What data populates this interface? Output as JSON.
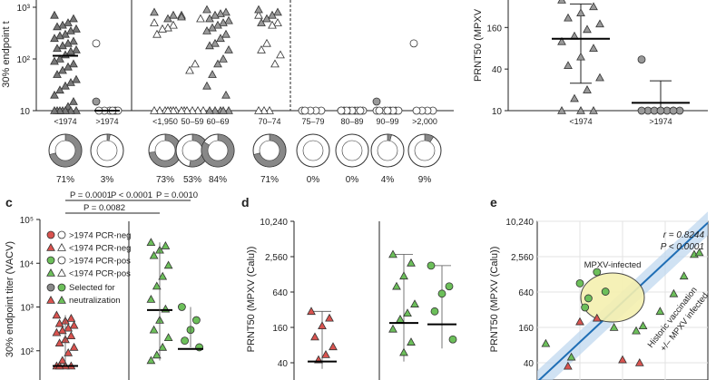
{
  "panel_labels": {
    "c": "c",
    "d": "d",
    "e": "e"
  },
  "chart_data": [
    {
      "id": "a-top",
      "type": "scatter",
      "ylabel": "30% endpoint t",
      "yscale": "log",
      "ylim": [
        10,
        1000
      ],
      "yticks": [
        "10",
        "10²",
        "10³"
      ],
      "categories": [
        "<1974",
        ">1974",
        "<1,950",
        "50–59",
        "60–69",
        "70–74",
        "75–79",
        "80–89",
        "90–99",
        ">2,000"
      ],
      "medians": [
        115,
        10,
        null,
        null,
        null,
        null,
        null,
        null,
        null,
        null
      ],
      "series": [
        {
          "marker": "triangle-filled",
          "values": [
            [
              700,
              600,
              500,
              450,
              420,
              380,
              350,
              300,
              280,
              250,
              220,
              200,
              180,
              160,
              150,
              140,
              120,
              100,
              90,
              80,
              70,
              60,
              50,
              40,
              35,
              30,
              25,
              20,
              15,
              12,
              10,
              10,
              10,
              10,
              10,
              10,
              10
            ],
            [],
            [],
            [],
            [],
            [],
            [],
            [],
            [],
            []
          ]
        },
        {
          "marker": "circle-open",
          "values": [
            [],
            [
              200,
              10,
              10,
              10,
              10,
              10,
              10
            ],
            [],
            [],
            [],
            [],
            [
              10,
              10,
              10,
              10,
              10
            ],
            [
              10,
              10,
              10,
              10,
              10,
              10,
              10,
              10,
              10,
              10,
              10
            ],
            [
              10,
              10,
              10,
              10,
              10,
              10,
              10,
              10
            ],
            [
              200,
              10,
              10,
              10,
              10
            ]
          ]
        },
        {
          "marker": "triangle-open",
          "values": [
            [],
            [],
            [
              500,
              450,
              400,
              380,
              300,
              10,
              10,
              10,
              10,
              10,
              10,
              10
            ],
            [
              700,
              600,
              80,
              60,
              10,
              10,
              10,
              10,
              10,
              10
            ],
            [],
            [
              700,
              500,
              450,
              200,
              150,
              120,
              80,
              10,
              10,
              10
            ],
            [],
            [],
            [],
            []
          ]
        },
        {
          "marker": "triangle-grey",
          "values": [
            [],
            [],
            [
              800,
              700,
              600
            ],
            [
              650
            ],
            [
              900,
              800,
              750,
              700,
              600,
              550,
              500,
              450,
              400,
              350,
              300,
              250,
              200,
              180,
              150,
              100,
              80,
              50,
              30,
              20,
              10,
              10,
              10,
              10,
              10
            ],
            [
              900,
              800,
              700,
              600,
              500
            ],
            [],
            [],
            [],
            []
          ]
        },
        {
          "marker": "circle-grey",
          "values": [
            [],
            [
              15
            ],
            [],
            [],
            [],
            [],
            [],
            [],
            [
              15
            ],
            []
          ]
        }
      ],
      "pies": [
        {
          "label": "71%",
          "value": 71
        },
        {
          "label": "3%",
          "value": 3
        },
        {
          "label": "73%",
          "value": 73
        },
        {
          "label": "53%",
          "value": 53
        },
        {
          "label": "84%",
          "value": 84
        },
        {
          "label": "71%",
          "value": 71
        },
        {
          "label": "0%",
          "value": 0
        },
        {
          "label": "0%",
          "value": 0
        },
        {
          "label": "4%",
          "value": 4
        },
        {
          "label": "9%",
          "value": 9
        }
      ]
    },
    {
      "id": "b-top",
      "type": "scatter",
      "ylabel": "PRNT50 (MPXV",
      "yscale": "log2",
      "ylim": [
        10,
        400
      ],
      "yticks": [
        "10",
        "40",
        "160"
      ],
      "categories": [
        "<1974",
        ">1974"
      ],
      "medians": [
        110,
        13
      ],
      "errorbars": [
        [
          25,
          350
        ],
        [
          10,
          27
        ]
      ],
      "series": [
        {
          "marker": "triangle-grey",
          "values": [
            [
              400,
              320,
              260,
              220,
              180,
              150,
              120,
              100,
              80,
              60,
              45,
              30,
              20,
              15,
              10,
              10,
              10
            ],
            []
          ]
        },
        {
          "marker": "circle-grey",
          "values": [
            [],
            [
              55,
              10,
              10,
              10,
              10,
              10,
              10,
              10,
              10,
              10
            ]
          ]
        }
      ]
    },
    {
      "id": "c",
      "type": "scatter",
      "ylabel": "30% endpoint titer (VACV)",
      "yscale": "log",
      "ylim": [
        30,
        100000
      ],
      "yticks": [
        "10²",
        "10³",
        "10⁴",
        "10⁵"
      ],
      "annotations": [
        "P = 0.0001",
        "P < 0.0001",
        "P = 0.0010",
        "P = 0.0082"
      ],
      "legend": [
        ">1974 PCR-neg",
        "<1974 PCR-neg",
        ">1974 PCR-pos",
        "<1974 PCR-pos",
        "Selected for",
        "neutralization"
      ],
      "groups": [
        {
          "name": "<1974 PCR-neg",
          "color": "#d9534f",
          "median": 45,
          "values": [
            650,
            550,
            480,
            420,
            380,
            330,
            290,
            260,
            220,
            180,
            150,
            120,
            90,
            60,
            45,
            45,
            45,
            45
          ]
        },
        {
          "name": "<1974 PCR-pos",
          "color": "#6cbf5a",
          "median": 850,
          "values": [
            30000,
            25000,
            20000,
            15000,
            9000,
            5000,
            3000,
            1500,
            900,
            500,
            300,
            200,
            120,
            80,
            60
          ]
        },
        {
          "name": ">1974 PCR-pos",
          "color": "#6cbf5a",
          "median": 110,
          "values": [
            1000,
            500,
            300,
            170,
            120
          ]
        }
      ]
    },
    {
      "id": "d",
      "type": "scatter",
      "ylabel": "PRNT50 (MPXV (Calu))",
      "yscale": "log2",
      "ylim": [
        30,
        10240
      ],
      "yticks": [
        "40",
        "160",
        "640",
        "2,560",
        "10,240"
      ],
      "groups": [
        {
          "name": "<1974 PCR-neg",
          "color": "#d9534f",
          "median": 42,
          "values": [
            300,
            230,
            170,
            110,
            75,
            55,
            45
          ]
        },
        {
          "name": "<1974 PCR-pos",
          "color": "#6cbf5a",
          "median": 190,
          "values": [
            2800,
            2000,
            1200,
            800,
            400,
            280,
            220,
            150,
            90,
            60
          ]
        },
        {
          "name": ">1974 PCR-pos",
          "color": "#6cbf5a",
          "median": 180,
          "values": [
            1800,
            800,
            600,
            300,
            100
          ]
        }
      ]
    },
    {
      "id": "e",
      "type": "scatter",
      "ylabel": "PRNT50 (MPXV (Calu))",
      "yscale": "log2",
      "ylim": [
        30,
        10240
      ],
      "yticks": [
        "40",
        "160",
        "640",
        "2,560",
        "10,240"
      ],
      "annotations": [
        "r = 0.8244",
        "P < 0.0001",
        "MPXV-infected",
        "Historic vaccination",
        "+/– MPXV infected"
      ],
      "series": [
        {
          "marker": "triangle-green",
          "values": [
            [
              0.05,
              85
            ],
            [
              0.2,
              50
            ],
            [
              0.45,
              160
            ],
            [
              0.58,
              140
            ],
            [
              0.62,
              170
            ],
            [
              0.72,
              300
            ],
            [
              0.8,
              600
            ],
            [
              0.86,
              1200
            ],
            [
              0.92,
              2800
            ],
            [
              0.95,
              3000
            ]
          ]
        },
        {
          "marker": "circle-green",
          "values": [
            [
              0.25,
              900
            ],
            [
              0.35,
              1400
            ],
            [
              0.3,
              500
            ],
            [
              0.4,
              650
            ],
            [
              0.28,
              350
            ]
          ]
        },
        {
          "marker": "triangle-red",
          "values": [
            [
              0.18,
              35
            ],
            [
              0.25,
              200
            ],
            [
              0.35,
              230
            ],
            [
              0.5,
              45
            ],
            [
              0.6,
              40
            ]
          ]
        }
      ]
    }
  ]
}
